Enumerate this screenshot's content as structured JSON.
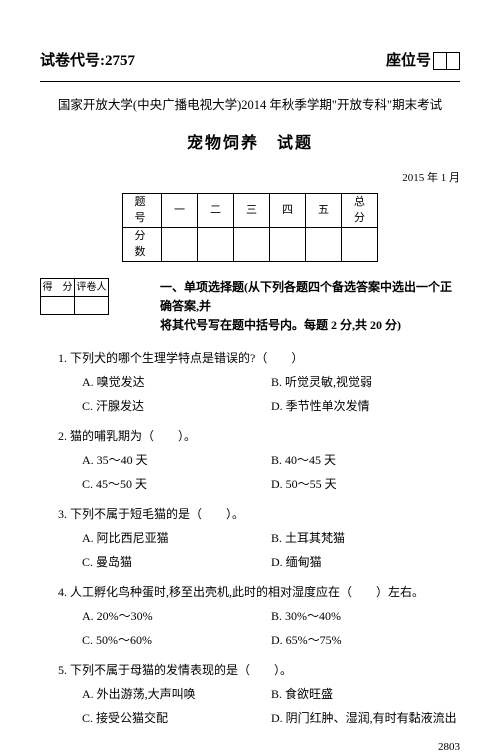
{
  "header": {
    "paper_code_label": "试卷代号:",
    "paper_code": "2757",
    "seat_label": "座位号"
  },
  "university": "国家开放大学(中央广播电视大学)2014 年秋季学期\"开放专科\"期末考试",
  "course_title": "宠物饲养　试题",
  "exam_date": "2015 年 1 月",
  "score_table": {
    "row1": [
      "题　号",
      "一",
      "二",
      "三",
      "四",
      "五",
      "总　分"
    ],
    "row2_label": "分　数"
  },
  "marker": {
    "c1": "得　分",
    "c2": "评卷人"
  },
  "section1": {
    "title_line1": "一、单项选择题(从下列各题四个备选答案中选出一个正确答案,并",
    "title_line2": "将其代号写在题中括号内。每题 2 分,共 20 分)"
  },
  "questions": [
    {
      "num": "1.",
      "stem": "下列犬的哪个生理学特点是错误的?（　　）",
      "opts": [
        "A. 嗅觉发达",
        "B. 听觉灵敏,视觉弱",
        "C. 汗腺发达",
        "D. 季节性单次发情"
      ]
    },
    {
      "num": "2.",
      "stem": "猫的哺乳期为（　　）。",
      "opts": [
        "A. 35～40 天",
        "B. 40～45 天",
        "C. 45～50 天",
        "D. 50～55 天"
      ]
    },
    {
      "num": "3.",
      "stem": "下列不属于短毛猫的是（　　）。",
      "opts": [
        "A. 阿比西尼亚猫",
        "B. 土耳其梵猫",
        "C. 曼岛猫",
        "D. 缅甸猫"
      ]
    },
    {
      "num": "4.",
      "stem": "人工孵化鸟种蛋时,移至出壳机,此时的相对湿度应在（　　）左右。",
      "opts": [
        "A. 20%～30%",
        "B. 30%～40%",
        "C. 50%～60%",
        "D. 65%～75%"
      ]
    },
    {
      "num": "5.",
      "stem": "下列不属于母猫的发情表现的是（　　）。",
      "opts": [
        "A. 外出游荡,大声叫唤",
        "B. 食欲旺盛",
        "C. 接受公猫交配",
        "D. 阴门红肿、湿润,有时有黏液流出"
      ]
    }
  ],
  "page_number": "2803"
}
